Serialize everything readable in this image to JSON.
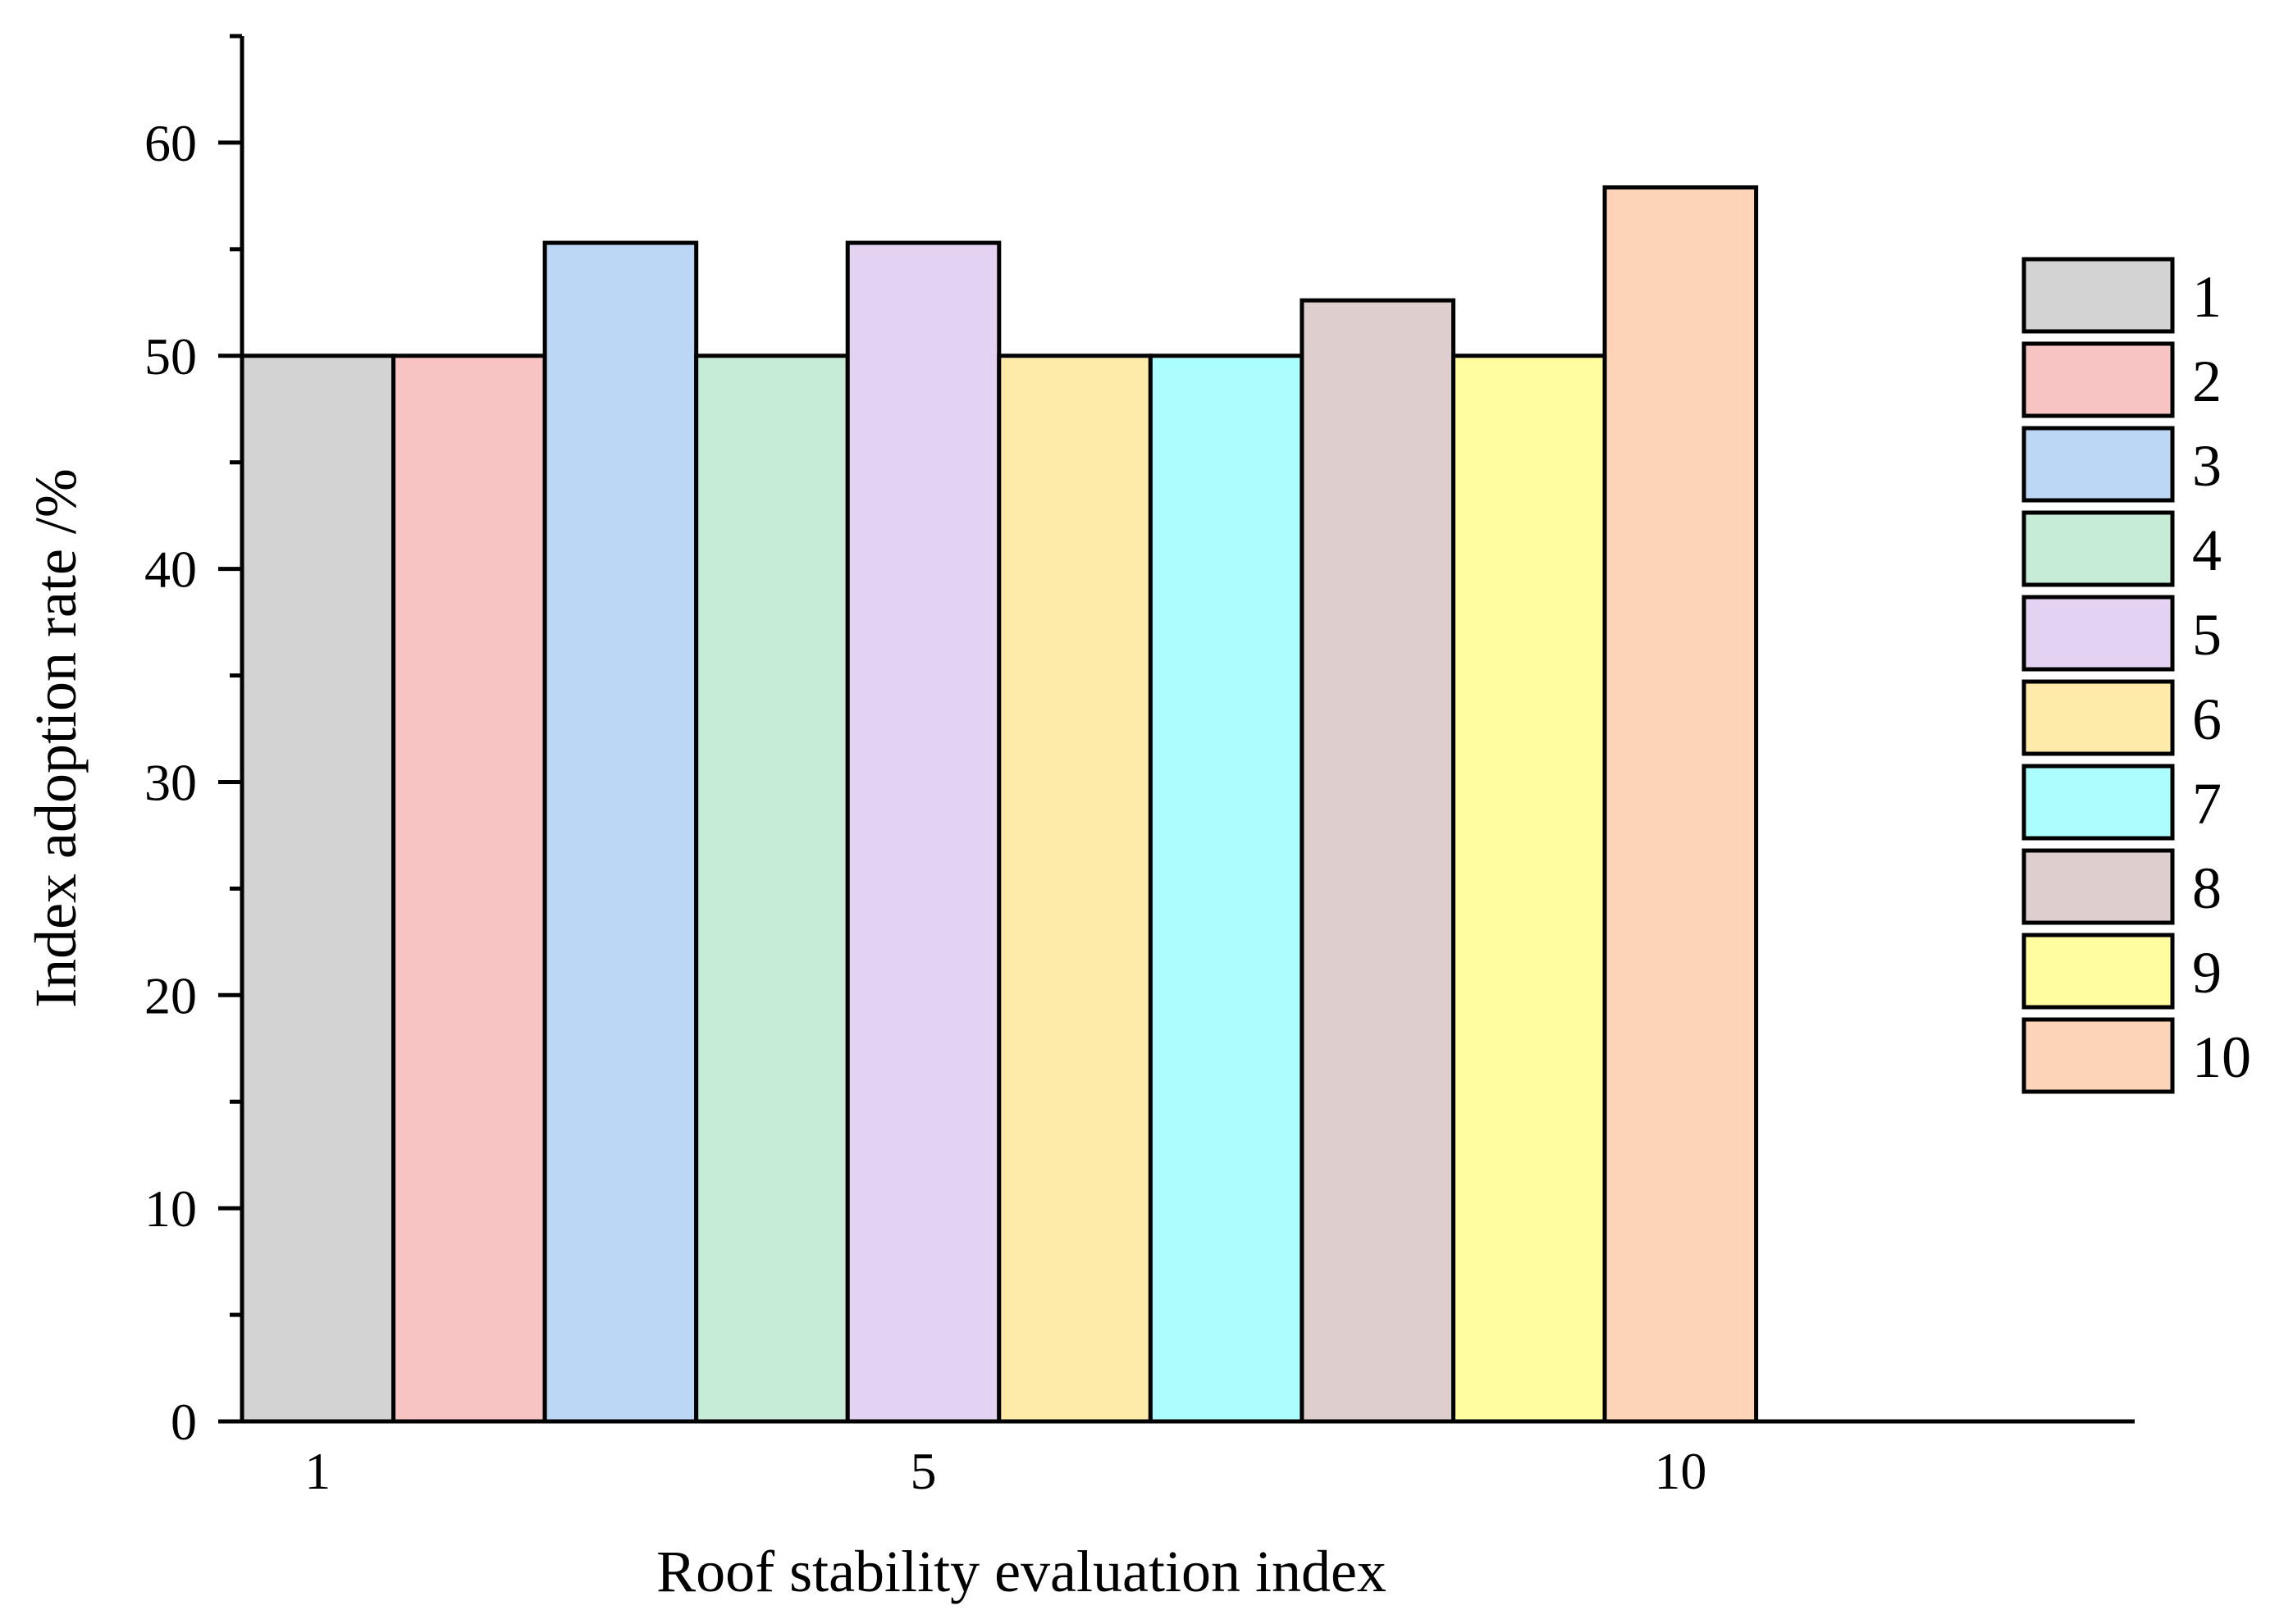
{
  "chart_data": {
    "type": "bar",
    "title": "",
    "xlabel": "Roof stability evaluation index",
    "ylabel": "Index adoption rate /%",
    "categories": [
      "1",
      "2",
      "3",
      "4",
      "5",
      "6",
      "7",
      "8",
      "9",
      "10"
    ],
    "values": [
      50,
      50,
      55.3,
      50,
      55.3,
      50,
      50,
      52.6,
      50,
      57.9
    ],
    "colors": [
      "#d3d3d3",
      "#f8c3c3",
      "#bcd6f5",
      "#c6ecd8",
      "#e3d2f2",
      "#feebaa",
      "#abfefd",
      "#dfcece",
      "#fffda0",
      "#fed4b8"
    ],
    "x_tick_labels": [
      "1",
      "5",
      "10"
    ],
    "x_ticks": [
      1,
      5,
      10
    ],
    "xlim": [
      0.5,
      13
    ],
    "ylim": [
      0,
      65
    ],
    "y_ticks": [
      0,
      10,
      20,
      30,
      40,
      50,
      60
    ],
    "y_tick_labels": [
      "0",
      "10",
      "20",
      "30",
      "40",
      "50",
      "60"
    ],
    "grid": false,
    "legend": {
      "placement": "right",
      "entries": [
        "1",
        "2",
        "3",
        "4",
        "5",
        "6",
        "7",
        "8",
        "9",
        "10"
      ]
    }
  }
}
